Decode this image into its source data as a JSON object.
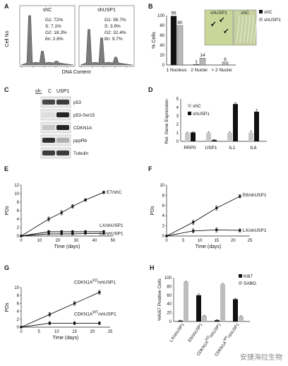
{
  "panels": {
    "A": {
      "letter": "A",
      "ylabel": "Cell No",
      "xlabel": "DNA Content",
      "hist": [
        {
          "title": "shC",
          "stats": [
            "G1: 72%",
            "S: 7.1%",
            "G2: 18.3%",
            "8n: 2.6%"
          ],
          "peaks": [
            1.0,
            0.28,
            0.08
          ]
        },
        {
          "title": "shUSP1",
          "stats": [
            "G1: 56.7%",
            "S: 3.9%",
            "G2: 32.4%",
            "8n: 9.7%"
          ],
          "peaks": [
            0.72,
            0.55,
            0.16
          ]
        }
      ]
    },
    "B": {
      "letter": "B",
      "ylabel": "% Cells",
      "legend": [
        "shC",
        "shUSP1"
      ],
      "micro_labels": [
        "shUSP1",
        "shC"
      ],
      "colors": {
        "shC": "#111111",
        "shUSP1": "#b8b8b8",
        "micro_bg": "#c9d69a"
      }
    },
    "C": {
      "letter": "C",
      "lanes_label": "sh:",
      "lanes": [
        "C",
        "USP1"
      ],
      "bands": [
        "p53",
        "p53-Ser15",
        "CDKN1A",
        "pppRb",
        "Tubulin"
      ]
    },
    "D": {
      "letter": "D",
      "ylabel": "Rel. Gene Expression",
      "legend": [
        "shC",
        "shUSP1"
      ]
    },
    "E": {
      "letter": "E",
      "ylabel": "PDs",
      "xlabel": "Time (days)"
    },
    "F": {
      "letter": "F",
      "ylabel": "PDs",
      "xlabel": "Time (days)"
    },
    "G": {
      "letter": "G",
      "ylabel": "PDs",
      "xlabel": "Time (days)"
    },
    "H": {
      "letter": "H",
      "ylabel": "%Ki67 Positive Cells",
      "legend": [
        "Ki67",
        "SABG"
      ]
    }
  },
  "chart_data": [
    {
      "id": "B",
      "type": "bar",
      "categories": [
        "1 Nucleus",
        "2 Nuclei",
        "> 2 Nuclei"
      ],
      "series": [
        {
          "name": "shC",
          "values": [
            99,
            1,
            0
          ]
        },
        {
          "name": "shUSP1",
          "values": [
            80,
            14,
            6
          ]
        }
      ],
      "value_labels": [
        "99",
        "80",
        "1",
        "14",
        "6"
      ],
      "ylim": [
        0,
        100
      ],
      "yticks": [
        "0",
        "20",
        "40",
        "60",
        "80",
        "100"
      ]
    },
    {
      "id": "D",
      "type": "bar",
      "categories": [
        "RRP0",
        "USP1",
        "IL1",
        "IL6"
      ],
      "series": [
        {
          "name": "shC",
          "values": [
            1.0,
            1.0,
            1.0,
            1.0
          ],
          "errors": [
            0.08,
            0.1,
            0.1,
            0.2
          ]
        },
        {
          "name": "shUSP1",
          "values": [
            1.05,
            0.15,
            4.4,
            3.5
          ],
          "errors": [
            0.06,
            0.05,
            0.15,
            0.25
          ]
        }
      ],
      "ylim": [
        0,
        5
      ],
      "yticks": [
        "0",
        "1",
        "2",
        "3",
        "4",
        "5"
      ]
    },
    {
      "id": "E",
      "type": "line",
      "xlim": [
        0,
        50
      ],
      "ylim": [
        0,
        12
      ],
      "xticks": [
        "0",
        "10",
        "20",
        "30",
        "40",
        "50"
      ],
      "yticks": [
        "0",
        "2",
        "4",
        "6",
        "8",
        "10",
        "12"
      ],
      "series": [
        {
          "name": "E7/shC",
          "x": [
            0,
            15,
            22,
            28,
            35,
            45
          ],
          "y": [
            0,
            4,
            5.5,
            7,
            8.5,
            10.3
          ],
          "errors": [
            0,
            0.5,
            0.5,
            0.4,
            0.3,
            0.3
          ]
        },
        {
          "name": "LX/shUSP1",
          "x": [
            0,
            15,
            22,
            28,
            35,
            45
          ],
          "y": [
            0,
            1,
            1,
            1,
            1,
            1
          ],
          "errors": [
            0,
            0.3,
            0.3,
            0.3,
            0.3,
            0.3
          ]
        },
        {
          "name": "E7/shUSP1",
          "x": [
            0,
            15,
            22,
            28,
            35,
            45
          ],
          "y": [
            0,
            0.5,
            0.5,
            0.5,
            0.6,
            0.6
          ],
          "errors": [
            0,
            0.2,
            0.2,
            0.2,
            0.2,
            0.2
          ]
        }
      ]
    },
    {
      "id": "F",
      "type": "line",
      "xlim": [
        0,
        25
      ],
      "ylim": [
        0,
        10
      ],
      "xticks": [
        "0",
        "5",
        "10",
        "15",
        "20",
        "25"
      ],
      "yticks": [
        "0",
        "2",
        "4",
        "6",
        "8",
        "10"
      ],
      "series": [
        {
          "name": "E6/shUSP1",
          "x": [
            0,
            8,
            15,
            22
          ],
          "y": [
            0,
            2.7,
            5.5,
            7.8
          ],
          "errors": [
            0,
            0.4,
            0.4,
            0.3
          ]
        },
        {
          "name": "LX/shUSP1",
          "x": [
            0,
            8,
            15,
            22
          ],
          "y": [
            0,
            1,
            1.2,
            1.1
          ],
          "errors": [
            0,
            0.4,
            0.4,
            0.3
          ]
        }
      ]
    },
    {
      "id": "G",
      "type": "line",
      "xlim": [
        0,
        25
      ],
      "ylim": [
        0,
        10
      ],
      "xticks": [
        "0",
        "5",
        "10",
        "15",
        "20",
        "25"
      ],
      "yticks": [
        "0",
        "2",
        "4",
        "6",
        "8",
        "10"
      ],
      "series": [
        {
          "name": "CDKN1A^KD/shUSP1",
          "x": [
            0,
            8,
            15,
            22
          ],
          "y": [
            0,
            3.2,
            6,
            8.8
          ],
          "errors": [
            0,
            0.5,
            0.5,
            0.5
          ]
        },
        {
          "name": "CDKN1A^WT/shUSP1",
          "x": [
            0,
            8,
            15,
            22
          ],
          "y": [
            0,
            1,
            1,
            1
          ],
          "errors": [
            0,
            0.4,
            0.4,
            0.4
          ]
        }
      ]
    },
    {
      "id": "H",
      "type": "bar",
      "categories": [
        "LX/shUSP1",
        "E6/shUSP1",
        "CDKN1A^KD/shUSP1",
        "CDKN1A^WT/shUSP1"
      ],
      "series": [
        {
          "name": "Ki67",
          "values": [
            2,
            60,
            3,
            51
          ],
          "errors": [
            1,
            3,
            1,
            2
          ]
        },
        {
          "name": "SABG",
          "values": [
            91,
            13,
            85,
            12
          ],
          "errors": [
            1,
            1,
            2,
            1
          ]
        }
      ],
      "ylim": [
        0,
        100
      ],
      "yticks": [
        "0",
        "20",
        "40",
        "60",
        "80",
        "100"
      ]
    }
  ],
  "watermark": "安捷海拉生物"
}
